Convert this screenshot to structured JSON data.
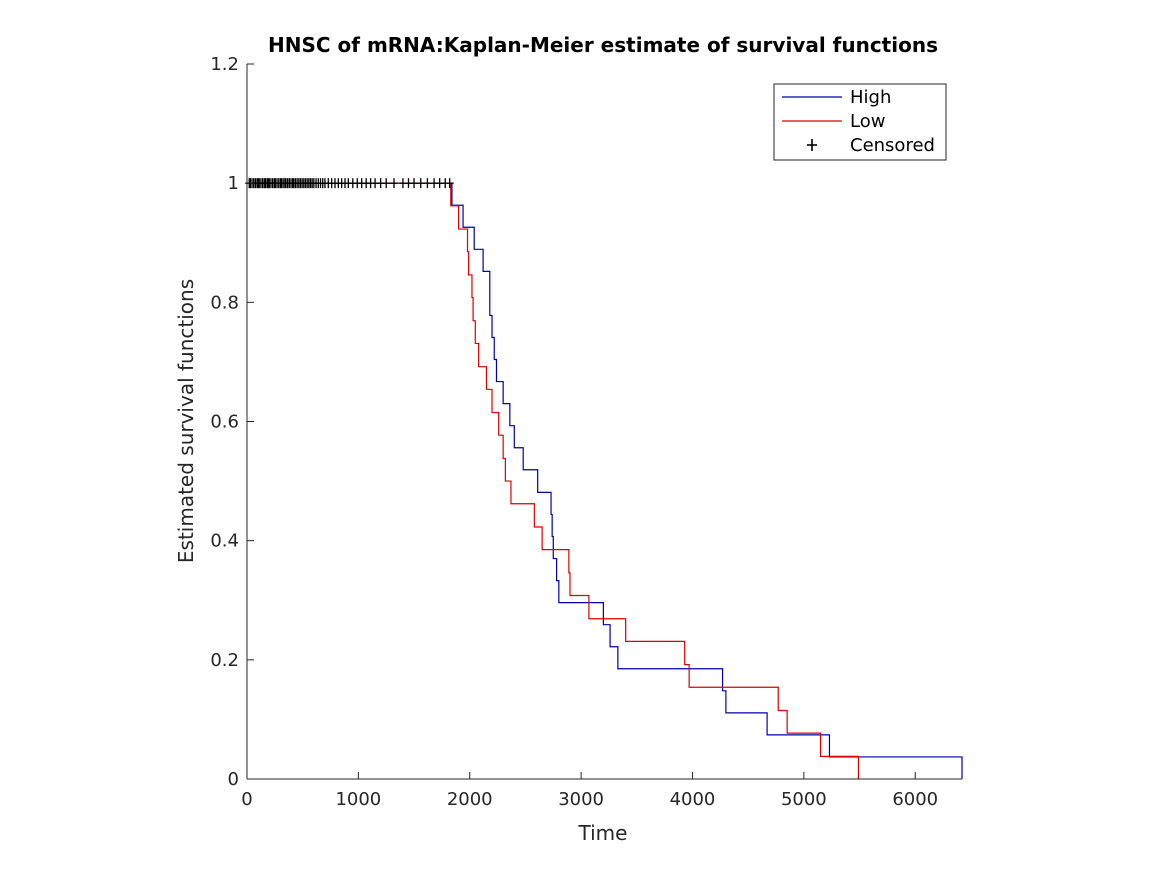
{
  "chart_data": {
    "type": "line",
    "title": "HNSC of mRNA:Kaplan-Meier estimate of survival functions",
    "xlabel": "Time",
    "ylabel": "Estimated survival functions",
    "xlim": [
      0,
      6420
    ],
    "ylim": [
      0,
      1.2
    ],
    "xticks": [
      0,
      1000,
      2000,
      3000,
      4000,
      5000,
      6000
    ],
    "yticks": [
      0,
      0.2,
      0.4,
      0.6,
      0.8,
      1,
      1.2
    ],
    "xtick_labels": [
      "0",
      "1000",
      "2000",
      "3000",
      "4000",
      "5000",
      "6000"
    ],
    "ytick_labels": [
      "0",
      "0.2",
      "0.4",
      "0.6",
      "0.8",
      "1",
      "1.2"
    ],
    "grid": false,
    "legend_position": "top-right",
    "series": [
      {
        "name": "High",
        "color": "#0000aa",
        "steps": [
          [
            0,
            1
          ],
          [
            1840,
            0.963
          ],
          [
            1940,
            0.926
          ],
          [
            2040,
            0.889
          ],
          [
            2120,
            0.852
          ],
          [
            2180,
            0.778
          ],
          [
            2200,
            0.741
          ],
          [
            2220,
            0.704
          ],
          [
            2240,
            0.667
          ],
          [
            2300,
            0.63
          ],
          [
            2360,
            0.593
          ],
          [
            2400,
            0.556
          ],
          [
            2480,
            0.519
          ],
          [
            2610,
            0.481
          ],
          [
            2730,
            0.444
          ],
          [
            2740,
            0.407
          ],
          [
            2750,
            0.37
          ],
          [
            2780,
            0.333
          ],
          [
            2800,
            0.296
          ],
          [
            3200,
            0.259
          ],
          [
            3260,
            0.222
          ],
          [
            3330,
            0.185
          ],
          [
            4270,
            0.148
          ],
          [
            4300,
            0.111
          ],
          [
            4670,
            0.074
          ],
          [
            5230,
            0.037
          ],
          [
            6420,
            0.037
          ]
        ],
        "end": [
          6420,
          0
        ]
      },
      {
        "name": "Low",
        "color": "#dd0000",
        "steps": [
          [
            0,
            1
          ],
          [
            1830,
            0.962
          ],
          [
            1900,
            0.923
          ],
          [
            1980,
            0.885
          ],
          [
            1990,
            0.846
          ],
          [
            2020,
            0.808
          ],
          [
            2030,
            0.769
          ],
          [
            2050,
            0.731
          ],
          [
            2080,
            0.692
          ],
          [
            2150,
            0.654
          ],
          [
            2200,
            0.615
          ],
          [
            2260,
            0.577
          ],
          [
            2300,
            0.538
          ],
          [
            2320,
            0.5
          ],
          [
            2370,
            0.462
          ],
          [
            2580,
            0.423
          ],
          [
            2650,
            0.385
          ],
          [
            2890,
            0.346
          ],
          [
            2900,
            0.308
          ],
          [
            3070,
            0.269
          ],
          [
            3400,
            0.231
          ],
          [
            3930,
            0.192
          ],
          [
            3970,
            0.154
          ],
          [
            4770,
            0.115
          ],
          [
            4850,
            0.077
          ],
          [
            5150,
            0.038
          ],
          [
            5490,
            0
          ]
        ]
      }
    ],
    "censored": {
      "name": "Censored",
      "marker": "+",
      "color": "#000000",
      "y": 1,
      "x": [
        20,
        30,
        45,
        60,
        75,
        90,
        100,
        110,
        125,
        140,
        155,
        165,
        180,
        190,
        200,
        215,
        230,
        245,
        255,
        270,
        285,
        300,
        310,
        325,
        340,
        350,
        365,
        380,
        395,
        410,
        420,
        435,
        450,
        465,
        480,
        495,
        510,
        525,
        540,
        555,
        570,
        585,
        600,
        620,
        640,
        660,
        680,
        700,
        730,
        760,
        790,
        820,
        850,
        880,
        910,
        950,
        990,
        1030,
        1070,
        1110,
        1150,
        1200,
        1250,
        1320,
        1400,
        1450,
        1500,
        1560,
        1620,
        1680,
        1730,
        1780,
        1820
      ]
    }
  }
}
